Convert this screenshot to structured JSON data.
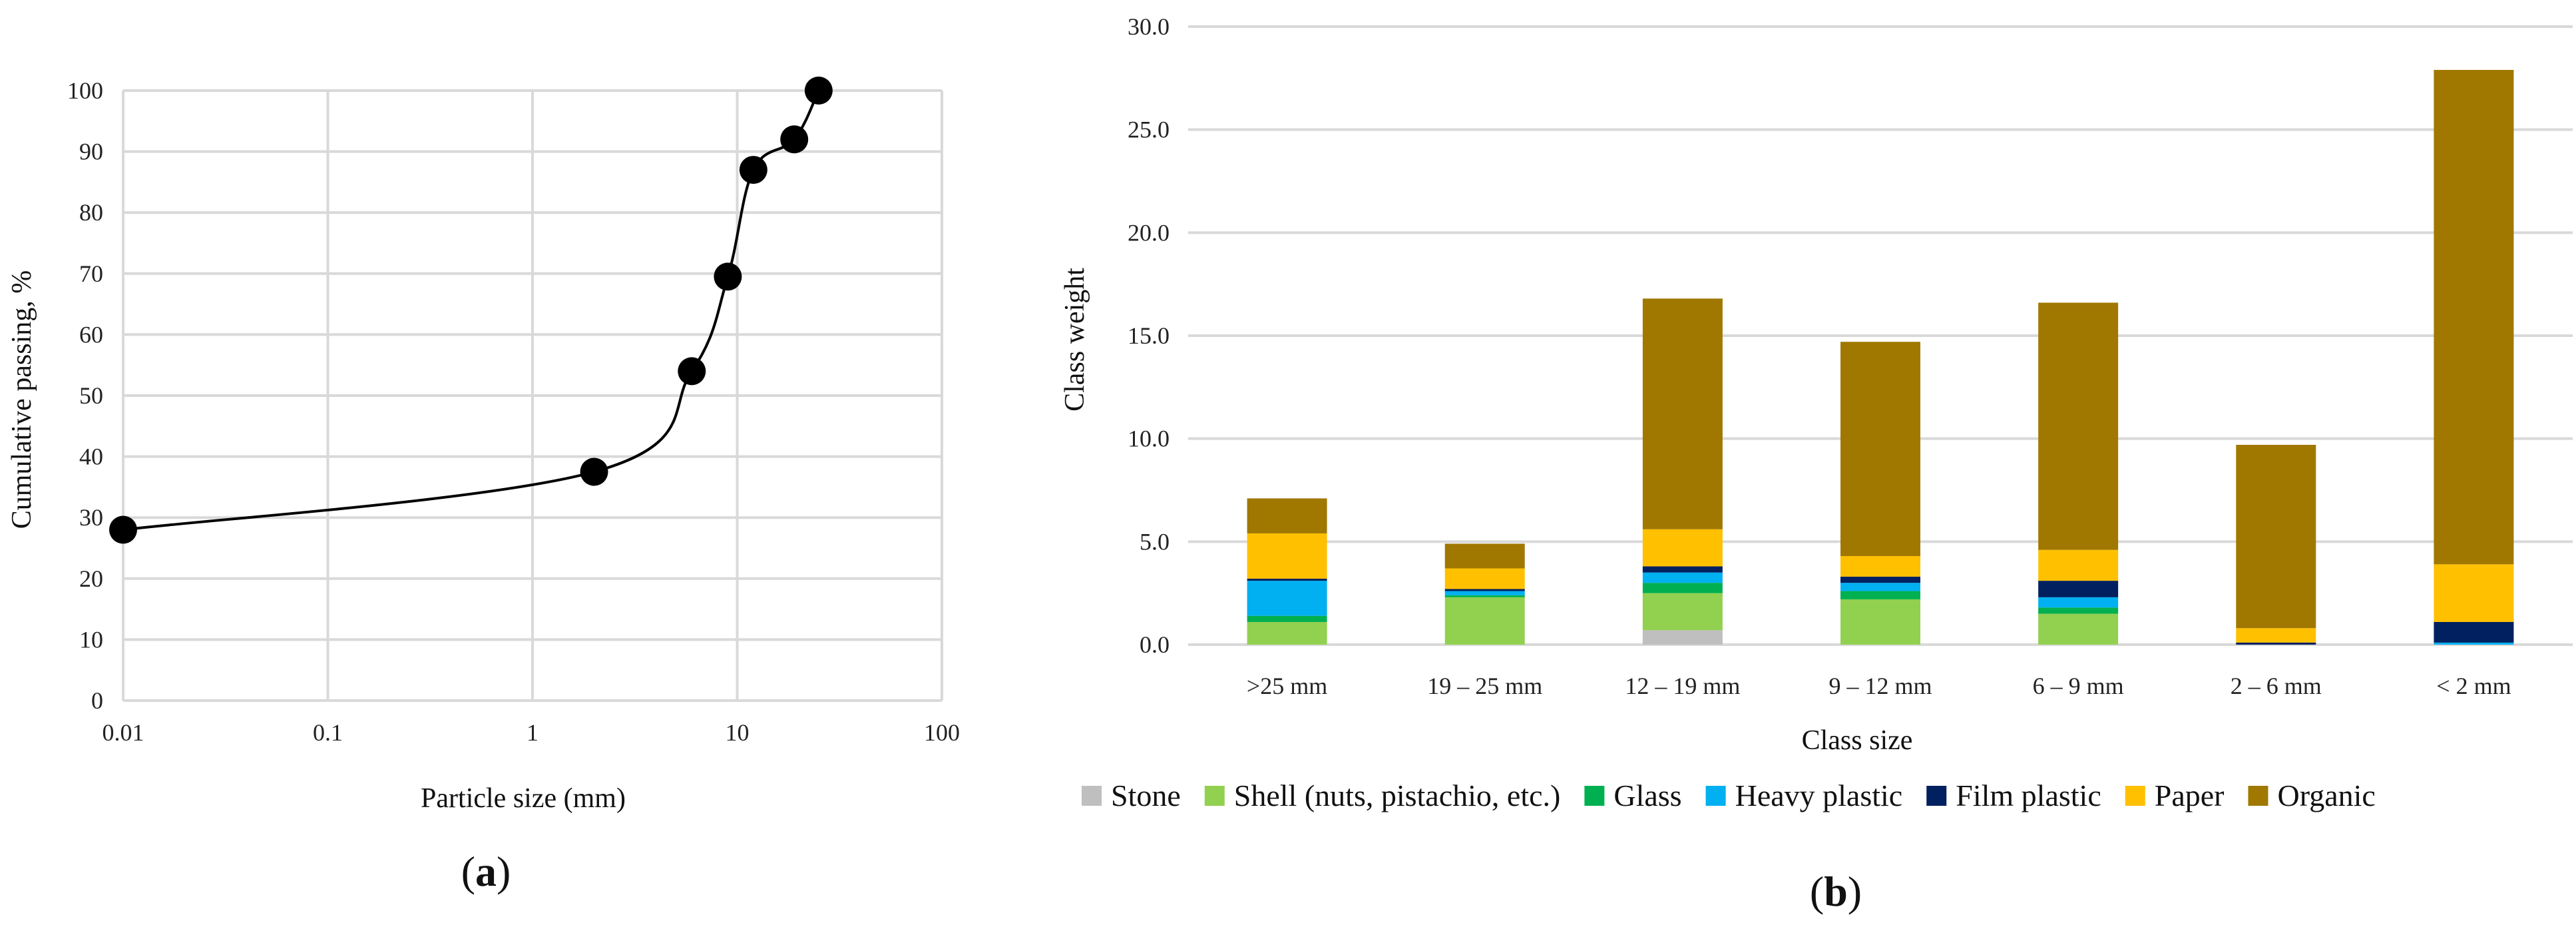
{
  "figure": {
    "panel_a_label": "a",
    "panel_b_label": "b"
  },
  "chart_data": [
    {
      "type": "scatter",
      "panel": "a",
      "xlabel": "Particle size (mm)",
      "ylabel": "Cumulative passing, %",
      "xscale": "log",
      "xlim": [
        0.01,
        100
      ],
      "ylim": [
        0,
        100
      ],
      "xticks": [
        "0.01",
        "0.1",
        "1",
        "10",
        "100"
      ],
      "yticks": [
        "0",
        "10",
        "20",
        "30",
        "40",
        "50",
        "60",
        "70",
        "80",
        "90",
        "100"
      ],
      "grid": true,
      "smooth_line": true,
      "points": [
        {
          "x": 0.01,
          "y": 28
        },
        {
          "x": 2,
          "y": 37.5
        },
        {
          "x": 6,
          "y": 54
        },
        {
          "x": 9,
          "y": 69.5
        },
        {
          "x": 12,
          "y": 87
        },
        {
          "x": 19,
          "y": 92
        },
        {
          "x": 25,
          "y": 100
        }
      ]
    },
    {
      "type": "bar",
      "stacked": true,
      "panel": "b",
      "xlabel": "Class size",
      "ylabel": "Class weight",
      "ylim": [
        0,
        30
      ],
      "yticks": [
        "0.0",
        "5.0",
        "10.0",
        "15.0",
        "20.0",
        "25.0",
        "30.0"
      ],
      "grid": true,
      "legend_position": "bottom",
      "categories": [
        ">25 mm",
        "19 – 25 mm",
        "12 – 19 mm",
        "9 – 12 mm",
        "6 – 9 mm",
        "2 – 6 mm",
        "< 2 mm"
      ],
      "series": [
        {
          "name": "Stone",
          "color": "#BFBFBF",
          "values": [
            0.0,
            0.0,
            0.7,
            0.0,
            0.0,
            0.0,
            0.0
          ]
        },
        {
          "name": "Shell (nuts, pistachio, etc.)",
          "color": "#92D050",
          "values": [
            1.1,
            2.3,
            1.8,
            2.2,
            1.5,
            0.0,
            0.0
          ]
        },
        {
          "name": "Glass",
          "color": "#00B050",
          "values": [
            0.3,
            0.1,
            0.5,
            0.4,
            0.3,
            0.0,
            0.0
          ]
        },
        {
          "name": "Heavy plastic",
          "color": "#00B0F0",
          "values": [
            1.7,
            0.2,
            0.5,
            0.4,
            0.5,
            0.0,
            0.1
          ]
        },
        {
          "name": "Film plastic",
          "color": "#002060",
          "values": [
            0.1,
            0.1,
            0.3,
            0.3,
            0.8,
            0.1,
            1.0
          ]
        },
        {
          "name": "Paper",
          "color": "#FFC000",
          "values": [
            2.2,
            1.0,
            1.8,
            1.0,
            1.5,
            0.7,
            2.8
          ]
        },
        {
          "name": "Organic",
          "color": "#A07800",
          "values": [
            1.7,
            1.2,
            11.2,
            10.4,
            12.0,
            8.9,
            24.0
          ]
        }
      ]
    }
  ]
}
